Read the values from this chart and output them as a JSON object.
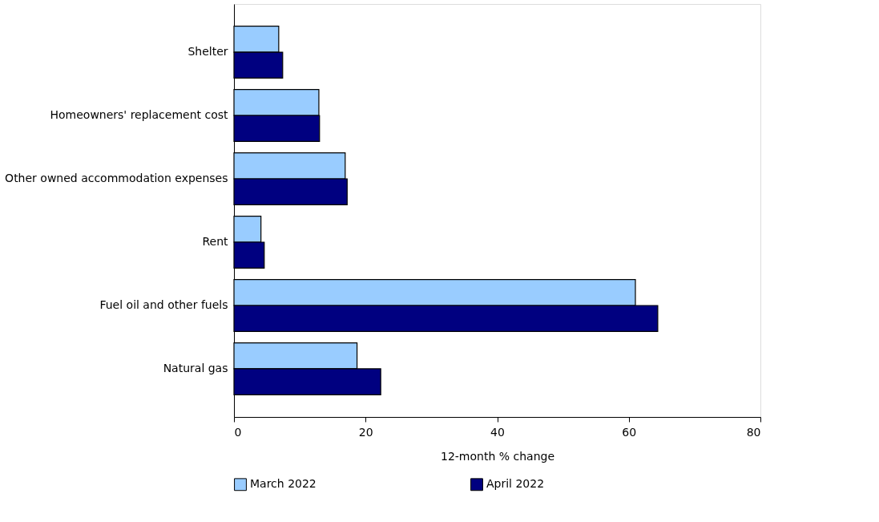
{
  "chart_data": {
    "type": "bar",
    "orientation": "horizontal",
    "xlabel": "12-month % change",
    "categories": [
      "Shelter",
      "Homeowners' replacement cost",
      "Other owned accommodation expenses",
      "Rent",
      "Fuel oil and other fuels",
      "Natural gas"
    ],
    "series": [
      {
        "name": "March 2022",
        "color": "#99ccff",
        "values": [
          6.8,
          12.9,
          16.9,
          4.1,
          61.0,
          18.7
        ]
      },
      {
        "name": "April 2022",
        "color": "#000080",
        "values": [
          7.4,
          13.0,
          17.2,
          4.6,
          64.4,
          22.3
        ]
      }
    ],
    "xlim": [
      0,
      80
    ],
    "xticks": [
      0,
      20,
      40,
      60,
      80
    ],
    "grid": false,
    "legend": "bottom"
  }
}
